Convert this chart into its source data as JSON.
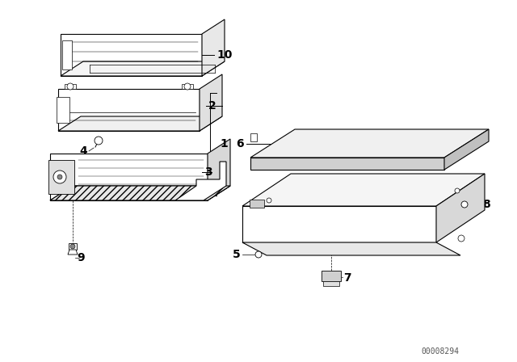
{
  "background_color": "#ffffff",
  "line_color": "#000000",
  "label_color": "#000000",
  "watermark": "00008294",
  "font_size": 10,
  "watermark_fontsize": 7
}
